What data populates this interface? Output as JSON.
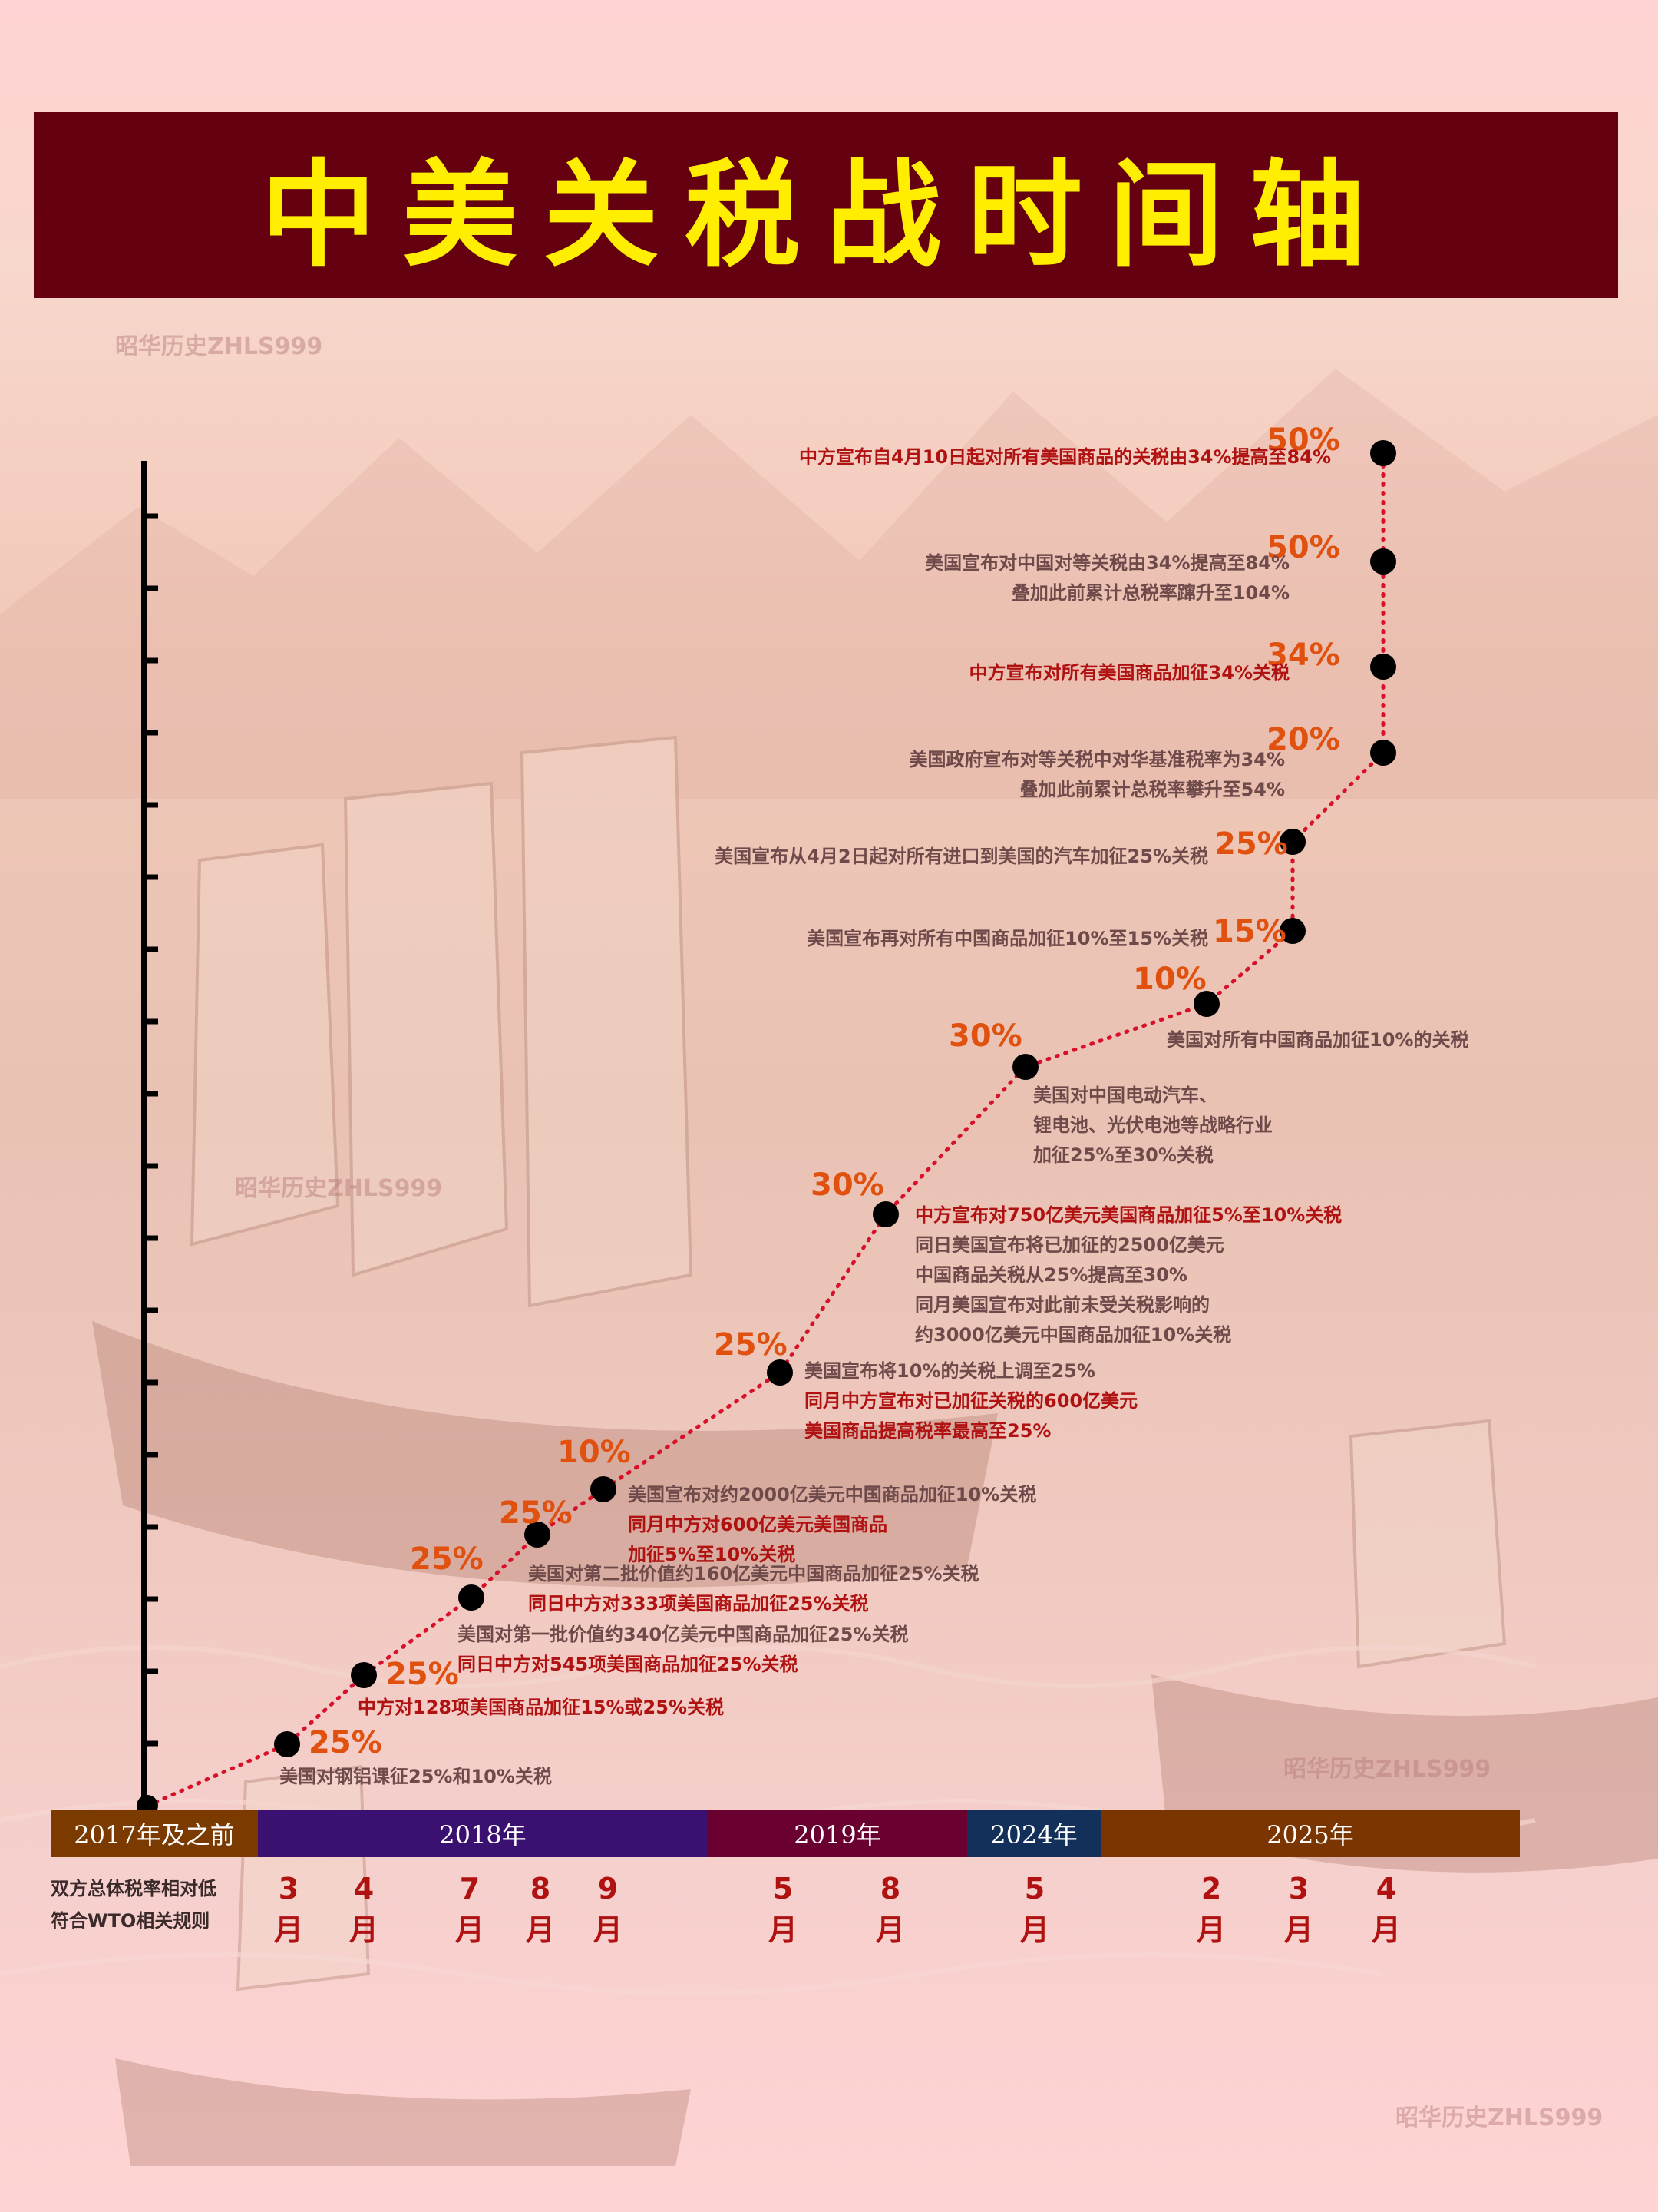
{
  "title": "中美关税战时间轴",
  "watermark": "昭华历史ZHLS999",
  "colors": {
    "title_bg": "#650010",
    "title_text": "#ffee00",
    "rate_label": "#e0500e",
    "us_action": "#6f4a4a",
    "cn_action": "#b01111",
    "dots": "#000000",
    "connector": "#d8102a",
    "era_2017": "#7a3a00",
    "era_2018": "#3a1070",
    "era_2019": "#6a0030",
    "era_2024": "#12305a",
    "era_2025": "#7a3500"
  },
  "baseline_note": [
    "双方总体税率相对低",
    "符合WTO相关规则"
  ],
  "eras": [
    {
      "label": "2017年及之前",
      "color": "#7a3a00"
    },
    {
      "label": "2018年",
      "color": "#3a1070"
    },
    {
      "label": "2019年",
      "color": "#6a0030"
    },
    {
      "label": "2024年",
      "color": "#12305a"
    },
    {
      "label": "2025年",
      "color": "#7a3500"
    }
  ],
  "chart_data": {
    "type": "line",
    "y_axis": "cumulative step, no printed labels",
    "points": [
      {
        "era": "2017年及之前",
        "month": "",
        "rate": "",
        "lines": []
      },
      {
        "era": "2018年",
        "month": "3\n月",
        "rate": "25%",
        "lines": [
          {
            "text": "美国对钢铝课征25%和10%关税",
            "side": "us"
          }
        ]
      },
      {
        "era": "2018年",
        "month": "4\n月",
        "rate": "25%",
        "lines": [
          {
            "text": "中方对128项美国商品加征15%或25%关税",
            "side": "cn"
          }
        ]
      },
      {
        "era": "2018年",
        "month": "7\n月",
        "rate": "25%",
        "lines": [
          {
            "text": "美国对第一批价值约340亿美元中国商品加征25%关税",
            "side": "us"
          },
          {
            "text": "同日中方对545项美国商品加征25%关税",
            "side": "cn"
          }
        ]
      },
      {
        "era": "2018年",
        "month": "8\n月",
        "rate": "25%",
        "lines": [
          {
            "text": "美国对第二批价值约160亿美元中国商品加征25%关税",
            "side": "us"
          },
          {
            "text": "同日中方对333项美国商品加征25%关税",
            "side": "cn"
          }
        ]
      },
      {
        "era": "2018年",
        "month": "9\n月",
        "rate": "10%",
        "lines": [
          {
            "text": "美国宣布对约2000亿美元中国商品加征10%关税",
            "side": "us"
          },
          {
            "text": "同月中方对600亿美元美国商品",
            "side": "cn"
          },
          {
            "text": "加征5%至10%关税",
            "side": "cn"
          }
        ]
      },
      {
        "era": "2019年",
        "month": "5\n月",
        "rate": "25%",
        "lines": [
          {
            "text": "美国宣布将10%的关税上调至25%",
            "side": "us"
          },
          {
            "text": "同月中方宣布对已加征关税的600亿美元",
            "side": "cn"
          },
          {
            "text": "美国商品提高税率最高至25%",
            "side": "cn"
          }
        ]
      },
      {
        "era": "2019年",
        "month": "8\n月",
        "rate": "30%",
        "lines": [
          {
            "text": "中方宣布对750亿美元美国商品加征5%至10%关税",
            "side": "cn"
          },
          {
            "text": "同日美国宣布将已加征的2500亿美元",
            "side": "us"
          },
          {
            "text": "中国商品关税从25%提高至30%",
            "side": "us"
          },
          {
            "text": "同月美国宣布对此前未受关税影响的",
            "side": "us"
          },
          {
            "text": "约3000亿美元中国商品加征10%关税",
            "side": "us"
          }
        ]
      },
      {
        "era": "2024年",
        "month": "5\n月",
        "rate": "30%",
        "lines": [
          {
            "text": "美国对中国电动汽车、",
            "side": "us"
          },
          {
            "text": "锂电池、光伏电池等战略行业",
            "side": "us"
          },
          {
            "text": "加征25%至30%关税",
            "side": "us"
          }
        ]
      },
      {
        "era": "2025年",
        "month": "2\n月",
        "rate": "10%",
        "lines": [
          {
            "text": "美国对所有中国商品加征10%的关税",
            "side": "us"
          }
        ]
      },
      {
        "era": "2025年",
        "month": "3\n月",
        "rate": "15%",
        "lines": [
          {
            "text": "美国宣布再对所有中国商品加征10%至15%关税",
            "side": "us"
          }
        ]
      },
      {
        "era": "2025年",
        "month": "3\n月",
        "rate": "25%",
        "lines": [
          {
            "text": "美国宣布从4月2日起对所有进口到美国的汽车加征25%关税",
            "side": "us"
          }
        ]
      },
      {
        "era": "2025年",
        "month": "4\n月",
        "rate": "20%",
        "lines": [
          {
            "text": "美国政府宣布对等关税中对华基准税率为34%",
            "side": "us"
          },
          {
            "text": "叠加此前累计总税率攀升至54%",
            "side": "us"
          }
        ]
      },
      {
        "era": "2025年",
        "month": "4\n月",
        "rate": "34%",
        "lines": [
          {
            "text": "中方宣布对所有美国商品加征34%关税",
            "side": "cn"
          }
        ]
      },
      {
        "era": "2025年",
        "month": "4\n月",
        "rate": "50%",
        "lines": [
          {
            "text": "美国宣布对中国对等关税由34%提高至84%",
            "side": "us"
          },
          {
            "text": "叠加此前累计总税率蹿升至104%",
            "side": "us"
          }
        ]
      },
      {
        "era": "2025年",
        "month": "4\n月",
        "rate": "50%",
        "lines": [
          {
            "text": "中方宣布自4月10日起对所有美国商品的关税由34%提高至84%",
            "side": "cn"
          }
        ]
      }
    ],
    "months_row": [
      "3\n月",
      "4\n月",
      "7\n月",
      "8\n月",
      "9\n月",
      "5\n月",
      "8\n月",
      "5\n月",
      "2\n月",
      "3\n月",
      "4\n月"
    ]
  }
}
